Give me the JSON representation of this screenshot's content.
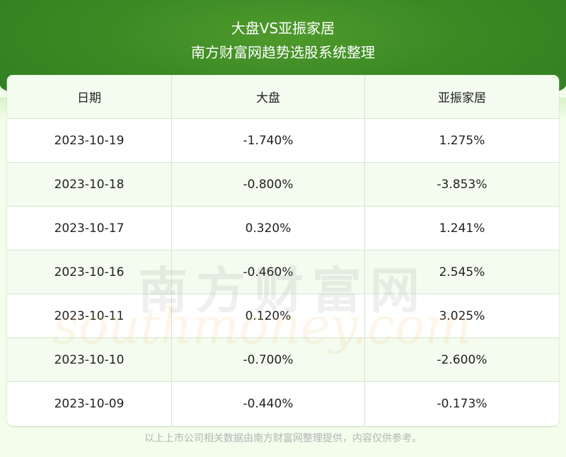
{
  "header": {
    "title": "大盘VS亚振家居",
    "subtitle": "南方财富网趋势选股系统整理"
  },
  "watermark": {
    "cn": "南方财富网",
    "en": "southmoney.com"
  },
  "footer": "以上上市公司相关数据由南方财富网整理提供，内容仅供参考。",
  "chart_data": {
    "type": "table",
    "columns": [
      "日期",
      "大盘",
      "亚振家居"
    ],
    "rows": [
      [
        "2023-10-19",
        "-1.740%",
        "1.275%"
      ],
      [
        "2023-10-18",
        "-0.800%",
        "-3.853%"
      ],
      [
        "2023-10-17",
        "0.320%",
        "1.241%"
      ],
      [
        "2023-10-16",
        "-0.460%",
        "2.545%"
      ],
      [
        "2023-10-11",
        "0.120%",
        "3.025%"
      ],
      [
        "2023-10-10",
        "-0.700%",
        "-2.600%"
      ],
      [
        "2023-10-09",
        "-0.440%",
        "-0.173%"
      ]
    ]
  }
}
